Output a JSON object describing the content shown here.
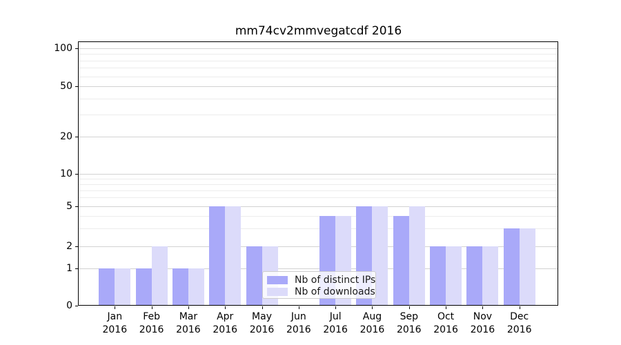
{
  "title": "mm74cv2mmvegatcdf 2016",
  "chart_data": {
    "type": "bar",
    "categories": [
      "Jan 2016",
      "Feb 2016",
      "Mar 2016",
      "Apr 2016",
      "May 2016",
      "Jun 2016",
      "Jul 2016",
      "Aug 2016",
      "Sep 2016",
      "Oct 2016",
      "Nov 2016",
      "Dec 2016"
    ],
    "x_tick_line1": [
      "Jan",
      "Feb",
      "Mar",
      "Apr",
      "May",
      "Jun",
      "Jul",
      "Aug",
      "Sep",
      "Oct",
      "Nov",
      "Dec"
    ],
    "x_tick_line2": "2016",
    "series": [
      {
        "name": "Nb of distinct IPs",
        "color": "#a9a9f9",
        "values": [
          1,
          1,
          1,
          5,
          2,
          0,
          4,
          5,
          4,
          2,
          2,
          3
        ]
      },
      {
        "name": "Nb of downloads",
        "color": "#dcdbfa",
        "values": [
          1,
          2,
          1,
          5,
          2,
          0,
          4,
          5,
          5,
          2,
          2,
          3
        ]
      }
    ],
    "title": "mm74cv2mmvegatcdf 2016",
    "xlabel": "",
    "ylabel": "",
    "ytick_labels": [
      "0",
      "1",
      "2",
      "5",
      "10",
      "20",
      "50",
      "100"
    ],
    "ylim": [
      0,
      100
    ],
    "yscale": "log-like (labeled ticks 0,1,2,5,10,20,50,100)",
    "grid": true,
    "legend_position": "lower center",
    "colors": {
      "axis": "#000000",
      "background": "#ffffff",
      "grid_major": "#d2d2d2",
      "grid_minor": "#ececec",
      "legend_border": "#cccccc",
      "text": "#000000"
    }
  }
}
